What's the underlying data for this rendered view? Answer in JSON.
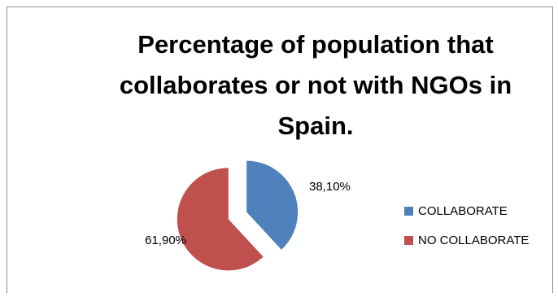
{
  "chart_data": {
    "type": "pie",
    "title": "Percentage of population that collaborates or not with NGOs in Spain.",
    "categories": [
      "COLLABORATE",
      "NO COLLABORATE"
    ],
    "values": [
      38.1,
      61.9
    ],
    "data_labels": [
      "38,10%",
      "61,90%"
    ],
    "colors": [
      "#4f81bd",
      "#c0504d"
    ],
    "exploded": true,
    "legend_position": "right"
  }
}
